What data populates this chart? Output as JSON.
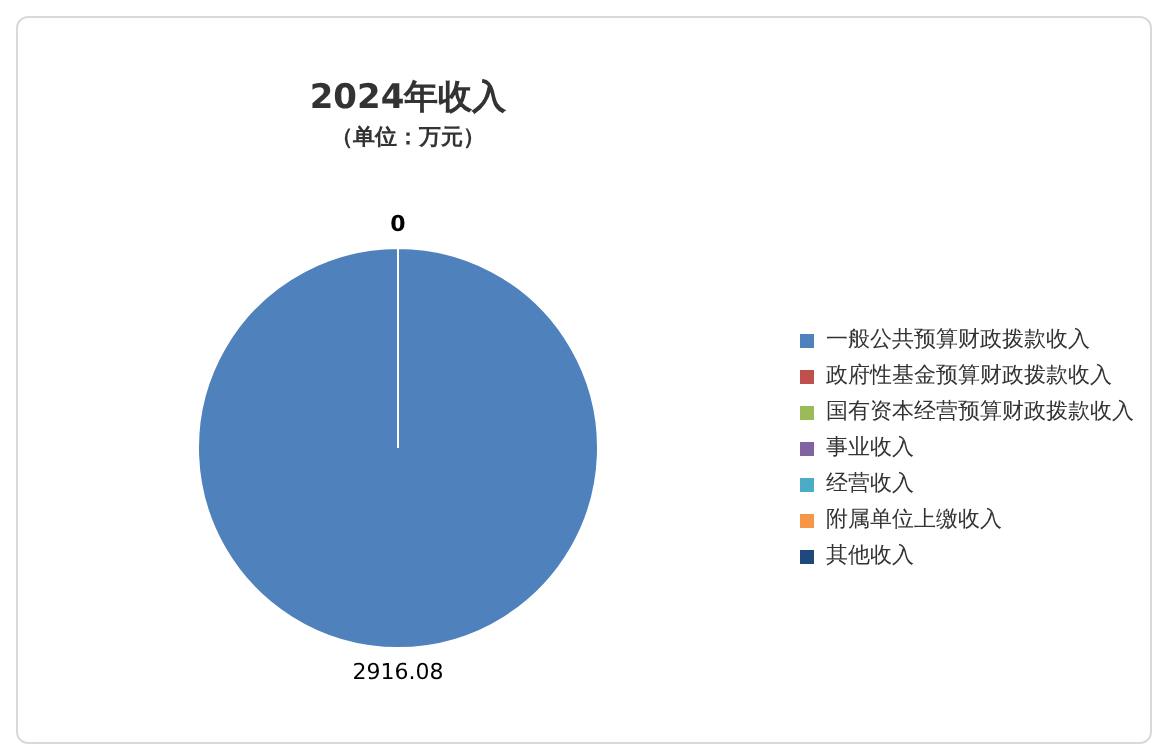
{
  "chart_data": {
    "type": "pie",
    "title": "2024年收入",
    "subtitle": "（单位：万元）",
    "categories": [
      "一般公共预算财政拨款收入",
      "政府性基金预算财政拨款收入",
      "国有资本经营预算财政拨款收入",
      "事业收入",
      "经营收入",
      "附属单位上缴收入",
      "其他收入"
    ],
    "values": [
      2916.08,
      0,
      0,
      0,
      0,
      0,
      0
    ],
    "colors": [
      "#4f81bd",
      "#c0504d",
      "#9bbb59",
      "#8064a2",
      "#4bacc6",
      "#f79646",
      "#1f497d"
    ],
    "value_labels": [
      "2916.08",
      "0",
      null,
      null,
      null,
      null,
      null
    ],
    "legend": "right"
  }
}
